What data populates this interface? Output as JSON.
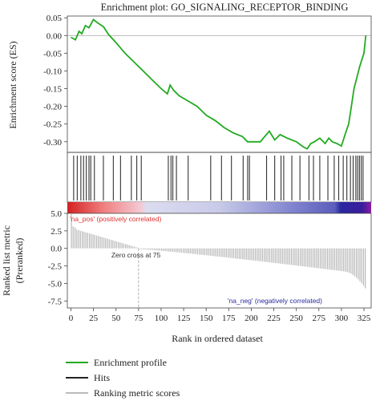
{
  "chart_data": {
    "type": "line",
    "title": "Enrichment plot: GO_SIGNALING_RECEPTOR_BINDING",
    "es_panel": {
      "ylabel": "Enrichment score (ES)",
      "ylim": [
        -0.33,
        0.055
      ],
      "yticks": [
        "0.05",
        "0.00",
        "-0.05",
        "-0.10",
        "-0.15",
        "-0.20",
        "-0.25",
        "-0.30"
      ],
      "yvals": [
        0.05,
        0,
        -0.05,
        -0.1,
        -0.15,
        -0.2,
        -0.25,
        -0.3
      ],
      "series": [
        {
          "name": "Enrichment profile",
          "x": [
            0,
            5,
            9,
            12,
            16,
            20,
            25,
            30,
            36,
            42,
            50,
            60,
            70,
            80,
            90,
            100,
            107,
            110,
            114,
            120,
            130,
            140,
            150,
            160,
            170,
            180,
            190,
            196,
            200,
            210,
            220,
            226,
            232,
            240,
            250,
            258,
            262,
            266,
            270,
            276,
            282,
            286,
            290,
            295,
            300,
            304,
            308,
            311,
            314,
            317,
            320,
            323,
            325,
            327
          ],
          "y": [
            -0.005,
            -0.012,
            0.012,
            0.005,
            0.028,
            0.022,
            0.045,
            0.035,
            0.025,
            0.002,
            -0.02,
            -0.05,
            -0.075,
            -0.1,
            -0.125,
            -0.15,
            -0.165,
            -0.14,
            -0.155,
            -0.17,
            -0.185,
            -0.2,
            -0.225,
            -0.24,
            -0.26,
            -0.275,
            -0.285,
            -0.3,
            -0.3,
            -0.3,
            -0.27,
            -0.295,
            -0.28,
            -0.29,
            -0.3,
            -0.315,
            -0.32,
            -0.305,
            -0.3,
            -0.29,
            -0.305,
            -0.29,
            -0.3,
            -0.305,
            -0.312,
            -0.28,
            -0.25,
            -0.2,
            -0.15,
            -0.12,
            -0.09,
            -0.065,
            -0.05,
            0.0
          ]
        }
      ]
    },
    "hits": [
      3,
      7,
      11,
      14,
      17,
      20,
      22,
      26,
      36,
      47,
      55,
      67,
      73,
      78,
      108,
      111,
      113,
      117,
      130,
      155,
      167,
      178,
      191,
      196,
      198,
      217,
      226,
      233,
      236,
      245,
      254,
      264,
      269,
      276,
      285,
      292,
      297,
      302,
      306,
      310,
      313,
      316,
      318,
      320,
      322,
      324
    ],
    "metric_panel": {
      "ylabel_line1": "Ranked list metric",
      "ylabel_line2": "(Preranked)",
      "ylim": [
        -8.5,
        5.0
      ],
      "yticks": [
        "5.0",
        "2.5",
        "0.0",
        "-2.5",
        "-5.0",
        "-7.5"
      ],
      "yvals": [
        5.0,
        2.5,
        0.0,
        -2.5,
        -5.0,
        -7.5
      ],
      "pos_label": "'na_pos' (positively correlated)",
      "neg_label": "'na_neg' (negatively correlated)",
      "zero_cross_label": "Zero cross at 75",
      "zero_cross": 75
    },
    "xaxis": {
      "xlabel": "Rank in ordered dataset",
      "xlim": [
        -4,
        333
      ],
      "xticks": [
        "0",
        "25",
        "50",
        "75",
        "100",
        "125",
        "150",
        "175",
        "200",
        "225",
        "250",
        "275",
        "300",
        "325"
      ],
      "xvals": [
        0,
        25,
        50,
        75,
        100,
        125,
        150,
        175,
        200,
        225,
        250,
        275,
        300,
        325
      ]
    },
    "legend": {
      "placement": "bottom-left",
      "items": [
        {
          "label": "Enrichment profile",
          "color": "#22aa22"
        },
        {
          "label": "Hits",
          "color": "#222222"
        },
        {
          "label": "Ranking metric scores",
          "color": "#bbbbbb"
        }
      ]
    },
    "colors": {
      "es_line": "#22aa22",
      "hit": "#333333",
      "metric_bar": "#b8b8b8",
      "pos_text": "#e03030",
      "neg_text": "#2a2aa0"
    }
  }
}
